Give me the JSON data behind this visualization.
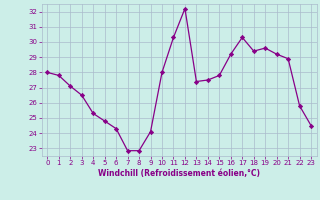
{
  "x": [
    0,
    1,
    2,
    3,
    4,
    5,
    6,
    7,
    8,
    9,
    10,
    11,
    12,
    13,
    14,
    15,
    16,
    17,
    18,
    19,
    20,
    21,
    22,
    23
  ],
  "y": [
    28.0,
    27.8,
    27.1,
    26.5,
    25.3,
    24.8,
    24.3,
    22.85,
    22.85,
    24.1,
    28.0,
    30.3,
    32.2,
    27.4,
    27.5,
    27.8,
    29.2,
    30.3,
    29.4,
    29.6,
    29.2,
    28.9,
    25.8,
    24.5
  ],
  "line_color": "#880088",
  "marker": "D",
  "marker_size": 2.2,
  "bg_color": "#cceee8",
  "grid_color": "#aabbcc",
  "xlabel": "Windchill (Refroidissement éolien,°C)",
  "xlabel_color": "#880088",
  "tick_color": "#880088",
  "ylim": [
    22.5,
    32.5
  ],
  "yticks": [
    23,
    24,
    25,
    26,
    27,
    28,
    29,
    30,
    31,
    32
  ],
  "xlim": [
    -0.5,
    23.5
  ],
  "xticks": [
    0,
    1,
    2,
    3,
    4,
    5,
    6,
    7,
    8,
    9,
    10,
    11,
    12,
    13,
    14,
    15,
    16,
    17,
    18,
    19,
    20,
    21,
    22,
    23
  ]
}
